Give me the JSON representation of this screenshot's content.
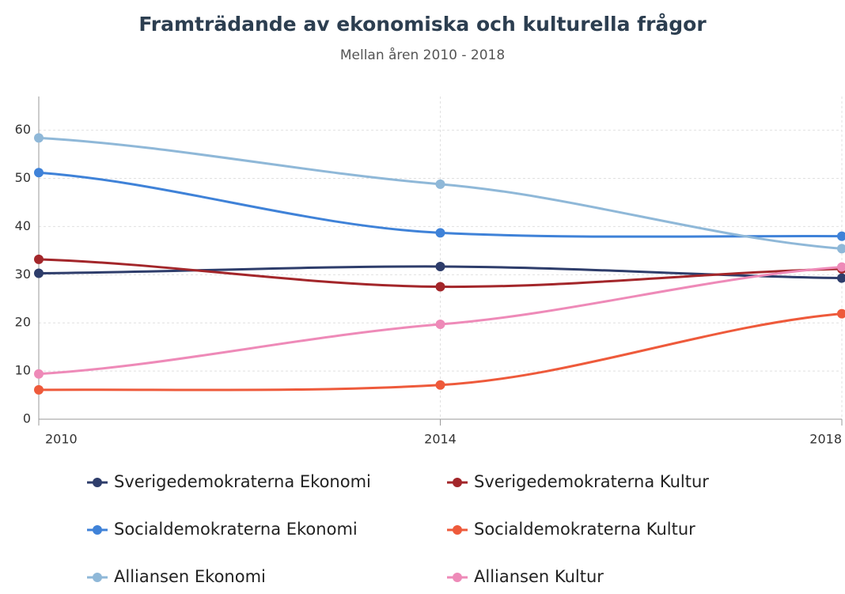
{
  "chart_data": {
    "type": "line",
    "title": "Framträdande av ekonomiska och kulturella frågor",
    "subtitle": "Mellan åren 2010 - 2018",
    "x": [
      2010,
      2014,
      2018
    ],
    "xlim": [
      2010,
      2018
    ],
    "xticks": [
      2010,
      2014,
      2018
    ],
    "ylim": [
      0,
      67
    ],
    "yticks": [
      0,
      10,
      20,
      30,
      40,
      50,
      60
    ],
    "grid": true,
    "smooth": true,
    "series": [
      {
        "name": "Sverigedemokraterna Ekonomi",
        "color": "#2e3d6b",
        "values": [
          30.3,
          31.7,
          29.3
        ]
      },
      {
        "name": "Sverigedemokraterna Kultur",
        "color": "#a3262a",
        "values": [
          33.2,
          27.5,
          31.2
        ]
      },
      {
        "name": "Socialdemokraterna Ekonomi",
        "color": "#3f82d8",
        "values": [
          51.2,
          38.7,
          38.0
        ]
      },
      {
        "name": "Socialdemokraterna Kultur",
        "color": "#ee5a3b",
        "values": [
          6.1,
          7.1,
          21.9
        ]
      },
      {
        "name": "Alliansen Ekonomi",
        "color": "#8fb8d8",
        "values": [
          58.4,
          48.8,
          35.4
        ]
      },
      {
        "name": "Alliansen Kultur",
        "color": "#ee8ab8",
        "values": [
          9.4,
          19.7,
          31.6
        ]
      }
    ]
  }
}
